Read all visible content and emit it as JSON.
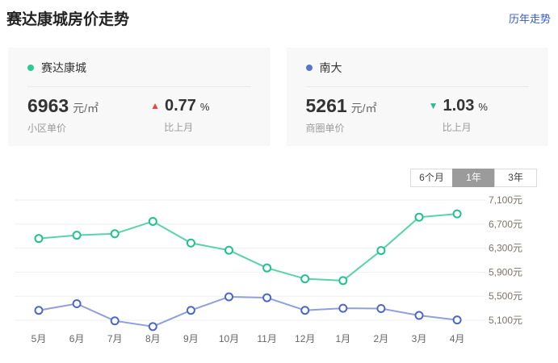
{
  "header": {
    "title": "赛达康城房价走势",
    "history_link": "历年走势"
  },
  "cards": [
    {
      "name": "赛达康城",
      "dot_color": "#2ec897",
      "price": "6963",
      "price_unit": "元/㎡",
      "price_label": "小区单价",
      "change_icon": "▲",
      "change_color": "#e8453c",
      "change_value": "0.77",
      "change_unit": "%",
      "change_label": "比上月"
    },
    {
      "name": "南大",
      "dot_color": "#5577c9",
      "price": "5261",
      "price_unit": "元/㎡",
      "price_label": "商圈单价",
      "change_icon": "▼",
      "change_color": "#2bbd92",
      "change_value": "1.03",
      "change_unit": "%",
      "change_label": "比上月"
    }
  ],
  "tabs": [
    {
      "label": "6个月",
      "active": false
    },
    {
      "label": "1年",
      "active": true
    },
    {
      "label": "3年",
      "active": false
    }
  ],
  "chart_data": {
    "type": "line",
    "categories": [
      "5月",
      "6月",
      "7月",
      "8月",
      "9月",
      "10月",
      "11月",
      "12月",
      "1月",
      "2月",
      "3月",
      "4月"
    ],
    "series": [
      {
        "name": "赛达康城",
        "line_color": "#5ad3a8",
        "point_color": "#21c38d",
        "values": [
          6460,
          6515,
          6540,
          6745,
          6385,
          6265,
          5970,
          5790,
          5760,
          6260,
          6815,
          6870
        ]
      },
      {
        "name": "南大",
        "line_color": "#8fa0dc",
        "point_color": "#4b68c8",
        "values": [
          5265,
          5375,
          5090,
          4995,
          5265,
          5490,
          5475,
          5265,
          5300,
          5295,
          5180,
          5105
        ]
      }
    ],
    "ylim": [
      5100,
      7100
    ],
    "yticks": [
      7100,
      6700,
      6300,
      5900,
      5500,
      5100
    ],
    "ytick_labels": [
      "7,100元",
      "6,700元",
      "6,300元",
      "5,900元",
      "5,500元",
      "5,100元"
    ],
    "grid": true,
    "legend_position": "none",
    "grid_color": "#efefef",
    "xtick_color": "#666666",
    "ytick_color": "#7c7468"
  }
}
